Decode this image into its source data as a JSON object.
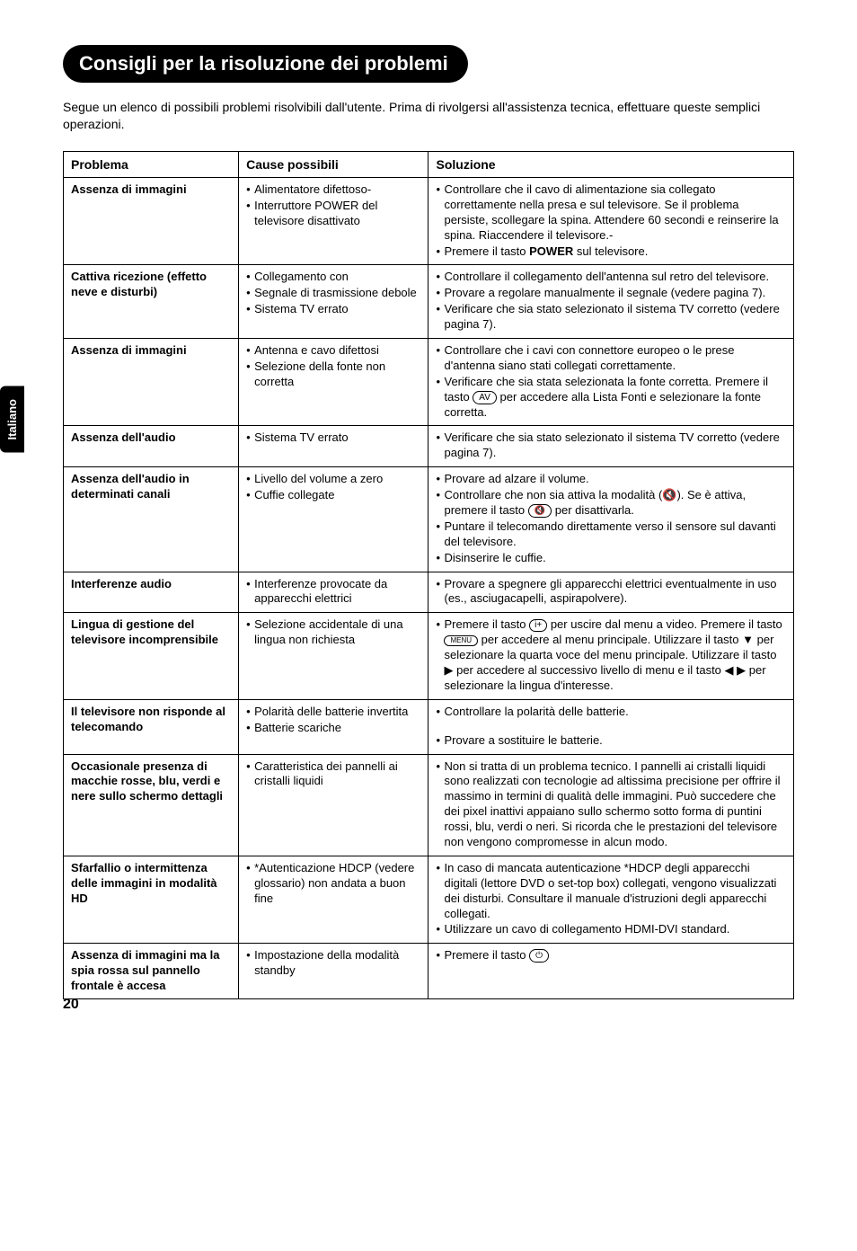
{
  "side_tab": "Italiano",
  "page_number": "20",
  "title": "Consigli per la risoluzione dei problemi",
  "intro": "Segue un elenco di possibili problemi risolvibili dall'utente. Prima di rivolgersi all'assistenza tecnica, effettuare queste semplici operazioni.",
  "headers": {
    "problem": "Problema",
    "cause": "Cause possibili",
    "solution": "Soluzione"
  },
  "rows": [
    {
      "problem": "Assenza di immagini",
      "causes": [
        "Alimentatore difettoso-",
        "Interruttore POWER del televisore disattivato"
      ],
      "solutions_html": "<ul class='bul'><li>Controllare che il cavo di alimentazione sia collegato correttamente nella presa e sul televisore. Se il problema persiste, scollegare la spina. Attendere 60 secondi e reinserire la spina. Riaccendere il televisore.-</li><li>Premere il tasto <b>POWER</b> sul televisore.</li></ul>"
    },
    {
      "problem": "Cattiva ricezione (effetto neve e disturbi)",
      "causes": [
        "Collegamento con",
        "Segnale di trasmissione debole",
        "Sistema TV errato"
      ],
      "solutions_html": "<ul class='bul'><li>Controllare il collegamento dell'antenna sul retro del televisore.</li><li>Provare a regolare manualmente il segnale (vedere pagina 7).</li><li>Verificare che sia stato selezionato il sistema TV corretto (vedere pagina 7).</li></ul>"
    },
    {
      "problem": "Assenza di immagini",
      "causes": [
        "Antenna e cavo difettosi",
        "Selezione della fonte non corretta"
      ],
      "solutions_html": "<ul class='bul'><li>Controllare che i cavi con connettore europeo o le prese d'antenna siano stati collegati correttamente.</li><li>Verificare che sia stata selezionata la fonte corretta. Premere il tasto <span class='icon-oval'>AV</span> per accedere alla Lista Fonti e selezionare la fonte corretta.</li></ul>"
    },
    {
      "problem": "Assenza dell'audio",
      "causes": [
        "Sistema TV errato"
      ],
      "solutions_html": "<ul class='bul'><li>Verificare che sia stato selezionato il sistema TV corretto (vedere pagina 7).</li></ul>"
    },
    {
      "problem": "Assenza dell'audio in determinati canali",
      "causes": [
        "Livello del volume a zero",
        "Cuffie collegate"
      ],
      "solutions_html": "<ul class='bul'><li>Provare ad alzare il volume.</li><li>Controllare che non sia attiva la modalità (🔇). Se è attiva, premere il tasto <span class='icon-oval'>🔇</span> per disattivarla.</li><li>Puntare il telecomando direttamente verso il sensore sul davanti del televisore.</li><li>Disinserire le cuffie.</li></ul>"
    },
    {
      "problem": "Interferenze audio",
      "causes": [
        "Interferenze provocate da apparecchi elettrici"
      ],
      "solutions_html": "<ul class='bul'><li>Provare a spegnere gli apparecchi elettrici eventualmente in uso (es., asciugacapelli, aspirapolvere).</li></ul>"
    },
    {
      "problem": "Lingua di gestione del televisore incomprensibile",
      "causes": [
        "Selezione accidentale di una lingua non richiesta"
      ],
      "solutions_html": "<ul class='bul'><li>Premere il tasto <span class='icon-box'>i+</span> per uscire dal menu a video. Premere il tasto <span class='icon-oval' style='font-size:8px'>MENU</span> per accedere al menu principale. Utilizzare il tasto ▼ per selezionare la quarta voce del menu principale. Utilizzare il tasto ▶ per accedere al successivo livello di menu e il tasto ◀ ▶ per selezionare la lingua d'interesse.</li></ul>"
    },
    {
      "problem": "Il televisore non risponde al telecomando",
      "causes": [
        "Polarità delle batterie invertita",
        "Batterie scariche"
      ],
      "solutions_html": "<ul class='bul'><li>Controllare la polarità delle batterie.</li></ul><div style='height:14px'></div><ul class='bul'><li>Provare a sostituire le batterie.</li></ul>"
    },
    {
      "problem": "Occasionale presenza di macchie rosse, blu, verdi e nere sullo schermo dettagli",
      "causes": [
        "Caratteristica dei pannelli ai cristalli liquidi"
      ],
      "solutions_html": "<ul class='bul'><li>Non si tratta di un problema tecnico. I pannelli ai cristalli liquidi sono realizzati con tecnologie ad altissima precisione per offrire il massimo in termini di qualità delle immagini. Può succedere che dei pixel inattivi appaiano sullo schermo sotto forma di puntini rossi, blu, verdi o neri. Si ricorda che le prestazioni del televisore non vengono compromesse in alcun modo.</li></ul>"
    },
    {
      "problem": "Sfarfallio o intermittenza delle immagini in modalità HD",
      "causes": [
        "*Autenticazione HDCP (vedere glossario) non andata a buon fine"
      ],
      "solutions_html": "<ul class='bul'><li>In caso di mancata autenticazione *HDCP degli apparecchi digitali (lettore DVD o set-top box) collegati, vengono visualizzati dei disturbi. Consultare il manuale d'istruzioni degli apparecchi collegati.</li><li>Utilizzare un cavo di collegamento HDMI-DVI standard.</li></ul>"
    },
    {
      "problem": "Assenza di immagini ma la spia rossa sul pannello frontale è accesa",
      "causes": [
        "Impostazione della modalità standby"
      ],
      "solutions_html": "<ul class='bul'><li>Premere il tasto <span class='icon-oval'>⏻</span></li></ul>"
    }
  ]
}
